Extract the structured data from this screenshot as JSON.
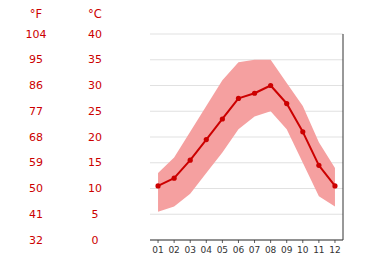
{
  "chart_data": {
    "type": "line",
    "categories": [
      "01",
      "02",
      "03",
      "04",
      "05",
      "06",
      "07",
      "08",
      "09",
      "10",
      "11",
      "12"
    ],
    "series": [
      {
        "type": "area",
        "color": "#f5a0a0",
        "values": [
          13.0,
          16.0,
          21.0,
          26.0,
          31.0,
          34.5,
          35.0,
          35.0,
          30.5,
          26.0,
          19.0,
          14.0
        ],
        "lower": [
          5.5,
          6.5,
          9.0,
          13.0,
          17.0,
          21.5,
          24.0,
          25.0,
          21.5,
          15.0,
          8.5,
          6.5
        ]
      },
      {
        "type": "line",
        "color": "#cc0000",
        "marker": "circle",
        "values": [
          10.5,
          12.0,
          15.5,
          19.5,
          23.5,
          27.5,
          28.5,
          30.0,
          26.5,
          21.0,
          14.5,
          10.5
        ]
      }
    ],
    "y_label": "°C",
    "y2_label": "°F",
    "ylim": [
      0,
      40
    ],
    "yticks": [
      0,
      5,
      10,
      15,
      20,
      25,
      30,
      35,
      40
    ],
    "y2lim": [
      32,
      104
    ],
    "y2ticks": [
      32,
      41,
      50,
      59,
      68,
      77,
      86,
      95,
      104
    ],
    "grid": true
  }
}
